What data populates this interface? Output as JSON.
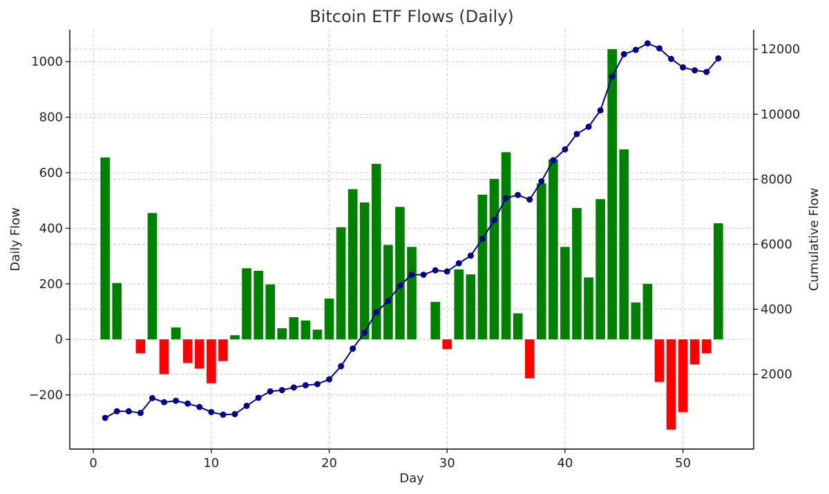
{
  "chart_data": {
    "type": "bar",
    "title": "Bitcoin ETF Flows (Daily)",
    "xlabel": "Day",
    "ylabel": "Daily Flow",
    "y2label": "Cumulative Flow",
    "xlim": [
      -2,
      56
    ],
    "ylim": [
      -395,
      1115
    ],
    "y2lim": [
      -305,
      12600
    ],
    "xticks": [
      0,
      10,
      20,
      30,
      40,
      50
    ],
    "yticks": [
      -200,
      0,
      200,
      400,
      600,
      800,
      1000
    ],
    "y2ticks": [
      2000,
      4000,
      6000,
      8000,
      10000,
      12000
    ],
    "grid": true,
    "colors": {
      "positive": "#008000",
      "negative": "#ff0000",
      "cumulative": "#00008b",
      "y2label": "#00008b",
      "grid": "#c8c8c8"
    },
    "x": [
      1,
      2,
      3,
      4,
      5,
      6,
      7,
      8,
      9,
      10,
      11,
      12,
      13,
      14,
      15,
      16,
      17,
      18,
      19,
      20,
      21,
      22,
      23,
      24,
      25,
      26,
      27,
      28,
      29,
      30,
      31,
      32,
      33,
      34,
      35,
      36,
      37,
      38,
      39,
      40,
      41,
      42,
      43,
      44,
      45,
      46,
      47,
      48,
      49,
      50,
      51,
      52,
      53
    ],
    "series": [
      {
        "axis": "left",
        "kind": "bar",
        "values": [
          655,
          203,
          0,
          -50,
          455,
          -125,
          43,
          -85,
          -105,
          -158,
          -78,
          15,
          256,
          247,
          198,
          40,
          80,
          68,
          35,
          147,
          404,
          541,
          493,
          632,
          340,
          477,
          333,
          0,
          135,
          -35,
          252,
          234,
          521,
          578,
          674,
          94,
          -140,
          562,
          648,
          333,
          473,
          223,
          505,
          1045,
          684,
          133,
          200,
          -153,
          -325,
          -262,
          -90,
          -50,
          418
        ]
      },
      {
        "axis": "right",
        "kind": "line",
        "values": [
          655,
          858,
          858,
          808,
          1263,
          1138,
          1181,
          1096,
          991,
          833,
          755,
          770,
          1026,
          1273,
          1471,
          1511,
          1591,
          1659,
          1694,
          1841,
          2245,
          2786,
          3279,
          3911,
          4251,
          4728,
          5061,
          5061,
          5196,
          5161,
          5413,
          5647,
          6168,
          6746,
          7420,
          7514,
          7374,
          7936,
          8584,
          8917,
          9390,
          9613,
          10118,
          11163,
          11847,
          11980,
          12180,
          12027,
          11702,
          11440,
          11350,
          11300,
          11718
        ]
      }
    ]
  }
}
